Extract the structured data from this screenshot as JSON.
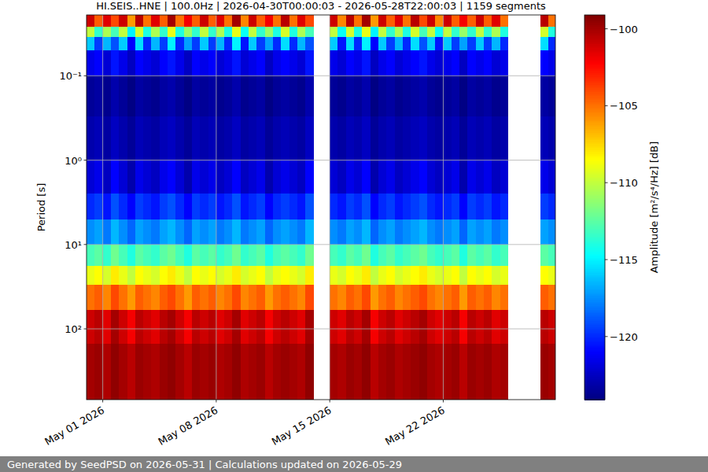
{
  "chart_data": {
    "type": "heatmap",
    "title": "HI.SEIS..HNE | 100.0Hz | 2026-04-30T00:00:03 - 2026-05-28T22:00:03 | 1159 segments",
    "y_label": "Period [s]",
    "footer": "Generated by SeedPSD on 2026-05-31 | Calculations updated on 2026-05-29",
    "log": "y",
    "grid": true,
    "color": "jet",
    "xlim": [
      "2026-04-30T00:00:03",
      "2026-05-28T22:00:03"
    ],
    "xticks": [
      {
        "value": "2026-05-01",
        "label": "May 01 2026"
      },
      {
        "value": "2026-05-08",
        "label": "May 08 2026"
      },
      {
        "value": "2026-05-15",
        "label": "May 15 2026"
      },
      {
        "value": "2026-05-22",
        "label": "May 22 2026"
      }
    ],
    "ylim": [
      0.019,
      690
    ],
    "yticks": [
      {
        "value": 0.1,
        "label": "10⁻¹"
      },
      {
        "value": 1,
        "label": "10⁰"
      },
      {
        "value": 10,
        "label": "10¹"
      },
      {
        "value": 100,
        "label": "10²"
      }
    ],
    "colorbar": {
      "range": [
        -124.1,
        -99.1
      ],
      "label": "Amplitude [m²/s⁴/Hz] [dB]",
      "ticks": [
        {
          "value": -100,
          "label": "−100"
        },
        {
          "value": -105,
          "label": "−105"
        },
        {
          "value": -110,
          "label": "−110"
        },
        {
          "value": -115,
          "label": "−115"
        },
        {
          "value": -120,
          "label": "−120"
        }
      ]
    },
    "x_edges": [
      "2026-04-30T00:00",
      "2026-04-30T12:00",
      "2026-05-01T00:00",
      "2026-05-01T12:00",
      "2026-05-02T00:00",
      "2026-05-02T12:00",
      "2026-05-03T00:00",
      "2026-05-03T12:00",
      "2026-05-04T00:00",
      "2026-05-04T12:00",
      "2026-05-05T00:00",
      "2026-05-05T12:00",
      "2026-05-06T00:00",
      "2026-05-06T12:00",
      "2026-05-07T00:00",
      "2026-05-07T12:00",
      "2026-05-08T00:00",
      "2026-05-08T12:00",
      "2026-05-09T00:00",
      "2026-05-09T12:00",
      "2026-05-10T00:00",
      "2026-05-10T12:00",
      "2026-05-11T00:00",
      "2026-05-11T12:00",
      "2026-05-12T00:00",
      "2026-05-12T12:00",
      "2026-05-13T00:00",
      "2026-05-13T12:00",
      "2026-05-14T00:00",
      "2026-05-14T12:00",
      "2026-05-15T00:00",
      "2026-05-15T12:00",
      "2026-05-16T00:00",
      "2026-05-16T12:00",
      "2026-05-17T00:00",
      "2026-05-17T12:00",
      "2026-05-18T00:00",
      "2026-05-18T12:00",
      "2026-05-19T00:00",
      "2026-05-19T12:00",
      "2026-05-20T00:00",
      "2026-05-20T12:00",
      "2026-05-21T00:00",
      "2026-05-21T12:00",
      "2026-05-22T00:00",
      "2026-05-22T12:00",
      "2026-05-23T00:00",
      "2026-05-23T12:00",
      "2026-05-24T00:00",
      "2026-05-24T12:00",
      "2026-05-25T00:00",
      "2026-05-25T12:00",
      "2026-05-26T00:00",
      "2026-05-26T12:00",
      "2026-05-27T00:00",
      "2026-05-27T12:00",
      "2026-05-28T00:00",
      "2026-05-28T12:00",
      "2026-05-29T00:00"
    ],
    "y_edges": [
      0.019,
      0.026,
      0.035,
      0.05,
      0.1,
      0.3,
      1,
      2.5,
      5,
      10,
      18,
      30,
      60,
      150,
      690
    ],
    "values": [
      [
        -101,
        -104.5,
        -101.5,
        -104,
        -101,
        -106,
        -100.5,
        -105,
        -101.5,
        -104.5,
        -100,
        -105,
        -102,
        -104.5,
        -101,
        -104.5,
        -101.5,
        -105,
        -100,
        -105.5,
        -101,
        -104.5,
        -102,
        -105,
        -100.5,
        -105,
        -101.5,
        -104,
        null,
        null,
        -101,
        -105.5,
        -100.5,
        -105,
        -100,
        -106,
        -101,
        -104.5,
        -101.5,
        -105,
        -100.5,
        -104,
        -101,
        -105.5,
        -101,
        -104.5,
        -102,
        -104.5,
        -101,
        -104.5,
        -101.5,
        -105,
        null,
        null,
        null,
        null,
        -100.5,
        -105
      ],
      [
        -110,
        -113.5,
        -110.5,
        -113,
        -110,
        -115,
        -109.5,
        -114,
        -110.5,
        -113.5,
        -109,
        -114,
        -111,
        -113.5,
        -110,
        -113.5,
        -110.5,
        -114,
        -109,
        -114.5,
        -110,
        -113.5,
        -111,
        -114,
        -109.5,
        -114,
        -110.5,
        -113,
        null,
        null,
        -110,
        -114.5,
        -109.5,
        -114,
        -109,
        -115,
        -110,
        -113.5,
        -110.5,
        -114,
        -109.5,
        -113,
        -110,
        -114.5,
        -110,
        -113.5,
        -111,
        -113.5,
        -110,
        -113.5,
        -110.5,
        -114,
        null,
        null,
        null,
        null,
        -109.5,
        -114
      ],
      [
        -116,
        -119.5,
        -116.5,
        -119,
        -116,
        -121,
        -115.5,
        -120,
        -116.5,
        -119.5,
        -115,
        -120,
        -117,
        -119.5,
        -116,
        -119.5,
        -116.5,
        -120,
        -115,
        -120.5,
        -116,
        -119.5,
        -117,
        -120,
        -115.5,
        -120,
        -116.5,
        -119,
        null,
        null,
        -116,
        -120.5,
        -115.5,
        -120,
        -115,
        -121,
        -116,
        -119.5,
        -116.5,
        -120,
        -115.5,
        -119,
        -116,
        -120.5,
        -116,
        -119.5,
        -117,
        -119.5,
        -116,
        -119.5,
        -116.5,
        -120,
        null,
        null,
        null,
        null,
        -115.5,
        -120
      ],
      [
        -121.5,
        -121,
        -122,
        -120.5,
        -121.5,
        -122.5,
        -121,
        -121.5,
        -122,
        -121,
        -120.5,
        -121.5,
        -122.5,
        -121,
        -121.5,
        -121,
        -122,
        -121.5,
        -120.5,
        -122,
        -121.5,
        -121,
        -122.5,
        -121.5,
        -121,
        -121.5,
        -122,
        -120.5,
        null,
        null,
        -121.5,
        -122,
        -121,
        -121.5,
        -120.5,
        -122.5,
        -121.5,
        -121,
        -122,
        -121.5,
        -121,
        -120.5,
        -121.5,
        -122,
        -121.5,
        -121,
        -122.5,
        -121,
        -121.5,
        -121,
        -122,
        -121.5,
        null,
        null,
        null,
        null,
        -121,
        -121.5
      ],
      [
        -123.5,
        -123.25,
        -123.75,
        -123,
        -123.5,
        -124,
        -123.25,
        -123.5,
        -123.75,
        -123.25,
        -123,
        -123.5,
        -124,
        -123.25,
        -123.5,
        -123.25,
        -123.75,
        -123.5,
        -123,
        -123.75,
        -123.5,
        -123.25,
        -124,
        -123.5,
        -123.25,
        -123.5,
        -123.75,
        -123,
        null,
        null,
        -123.5,
        -123.75,
        -123.25,
        -123.5,
        -123,
        -124,
        -123.5,
        -123.25,
        -123.75,
        -123.5,
        -123.25,
        -123,
        -123.5,
        -123.75,
        -123.5,
        -123.25,
        -124,
        -123.25,
        -123.5,
        -123.25,
        -123.75,
        -123.5,
        null,
        null,
        null,
        null,
        -123.25,
        -123.5
      ],
      [
        -123,
        -122.75,
        -123.25,
        -122.5,
        -123,
        -123.5,
        -122.75,
        -123,
        -123.25,
        -122.75,
        -122.5,
        -123,
        -123.5,
        -122.75,
        -123,
        -122.75,
        -123.25,
        -123,
        -122.5,
        -123.25,
        -123,
        -122.75,
        -123.5,
        -123,
        -122.75,
        -123,
        -123.25,
        -122.5,
        null,
        null,
        -123,
        -123.25,
        -122.75,
        -123,
        -122.5,
        -123.5,
        -123,
        -122.75,
        -123.25,
        -123,
        -122.75,
        -122.5,
        -123,
        -123.25,
        -123,
        -122.75,
        -123.5,
        -122.75,
        -123,
        -122.75,
        -123.25,
        -123,
        null,
        null,
        null,
        null,
        -122.75,
        -123
      ],
      [
        -122,
        -121.5,
        -122.5,
        -121,
        -122,
        -123,
        -121.5,
        -122,
        -122.5,
        -121.5,
        -121,
        -122,
        -123,
        -121.5,
        -122,
        -121.5,
        -122.5,
        -122,
        -121,
        -122.5,
        -122,
        -121.5,
        -123,
        -122,
        -121.5,
        -122,
        -122.5,
        -121,
        null,
        null,
        -122,
        -122.5,
        -121.5,
        -122,
        -121,
        -123,
        -122,
        -121.5,
        -122.5,
        -122,
        -121.5,
        -121,
        -122,
        -122.5,
        -122,
        -121.5,
        -123,
        -121.5,
        -122,
        -121.5,
        -122.5,
        -122,
        null,
        null,
        null,
        null,
        -121.5,
        -122
      ],
      [
        -120,
        -119.5,
        -120.5,
        -119,
        -120,
        -121,
        -119.5,
        -120,
        -120.5,
        -119.5,
        -119,
        -120,
        -121,
        -119.5,
        -120,
        -119.5,
        -120.5,
        -120,
        -119,
        -120.5,
        -120,
        -119.5,
        -121,
        -120,
        -119.5,
        -120,
        -120.5,
        -119,
        null,
        null,
        -120,
        -120.5,
        -119.5,
        -120,
        -119,
        -121,
        -120,
        -119.5,
        -120.5,
        -120,
        -119.5,
        -119,
        -120,
        -120.5,
        -120,
        -119.5,
        -121,
        -119.5,
        -120,
        -119.5,
        -120.5,
        -120,
        null,
        null,
        null,
        null,
        -119.5,
        -120
      ],
      [
        -117.5,
        -117,
        -118,
        -116.5,
        -117.5,
        -118.5,
        -117,
        -117.5,
        -118,
        -117,
        -116.5,
        -117.5,
        -118.5,
        -117,
        -117.5,
        -117,
        -118,
        -117.5,
        -116.5,
        -118,
        -117.5,
        -117,
        -118.5,
        -117.5,
        -117,
        -117.5,
        -118,
        -116.5,
        null,
        null,
        -117.5,
        -118,
        -117,
        -117.5,
        -116.5,
        -118.5,
        -117.5,
        -117,
        -118,
        -117.5,
        -117,
        -116.5,
        -117.5,
        -118,
        -117.5,
        -117,
        -118.5,
        -117,
        -117.5,
        -117,
        -118,
        -117.5,
        null,
        null,
        null,
        null,
        -117,
        -117.5
      ],
      [
        -113,
        -112.5,
        -113.5,
        -112,
        -113,
        -114,
        -112.5,
        -113,
        -113.5,
        -112.5,
        -112,
        -113,
        -114,
        -112.5,
        -113,
        -112.5,
        -113.5,
        -113,
        -112,
        -113.5,
        -113,
        -112.5,
        -114,
        -113,
        -112.5,
        -113,
        -113.5,
        -112,
        null,
        null,
        -113,
        -113.5,
        -112.5,
        -113,
        -112,
        -114,
        -113,
        -112.5,
        -113.5,
        -113,
        -112.5,
        -112,
        -113,
        -113.5,
        -113,
        -112.5,
        -114,
        -112.5,
        -113,
        -112.5,
        -113.5,
        -113,
        null,
        null,
        null,
        null,
        -112.5,
        -113
      ],
      [
        -109,
        -108.5,
        -109.5,
        -108,
        -109,
        -110,
        -108.5,
        -109,
        -109.5,
        -108.5,
        -108,
        -109,
        -110,
        -108.5,
        -109,
        -108.5,
        -109.5,
        -109,
        -108,
        -109.5,
        -109,
        -108.5,
        -110,
        -109,
        -108.5,
        -109,
        -109.5,
        -108,
        null,
        null,
        -109,
        -109.5,
        -108.5,
        -109,
        -108,
        -110,
        -109,
        -108.5,
        -109.5,
        -109,
        -108.5,
        -108,
        -109,
        -109.5,
        -109,
        -108.5,
        -110,
        -108.5,
        -109,
        -108.5,
        -109.5,
        -109,
        null,
        null,
        null,
        null,
        -108.5,
        -109
      ],
      [
        -105,
        -104.5,
        -105.5,
        -104,
        -105,
        -106,
        -104.5,
        -105,
        -105.5,
        -104.5,
        -104,
        -105,
        -106,
        -104.5,
        -105,
        -104.5,
        -105.5,
        -105,
        -104,
        -105.5,
        -105,
        -104.5,
        -106,
        -105,
        -104.5,
        -105,
        -105.5,
        -104,
        null,
        null,
        -105,
        -105.5,
        -104.5,
        -105,
        -104,
        -106,
        -105,
        -104.5,
        -105.5,
        -105,
        -104.5,
        -104,
        -105,
        -105.5,
        -105,
        -104.5,
        -106,
        -104.5,
        -105,
        -104.5,
        -105.5,
        -105,
        null,
        null,
        null,
        null,
        -104.5,
        -105
      ],
      [
        -101,
        -100.5,
        -101.5,
        -100,
        -101,
        -102,
        -100.5,
        -101,
        -101.5,
        -100.5,
        -100,
        -101,
        -102,
        -100.5,
        -101,
        -100.5,
        -101.5,
        -101,
        -100,
        -101.5,
        -101,
        -100.5,
        -102,
        -101,
        -100.5,
        -101,
        -101.5,
        -100,
        null,
        null,
        -101,
        -101.5,
        -100.5,
        -101,
        -100,
        -102,
        -101,
        -100.5,
        -101.5,
        -101,
        -100.5,
        -100,
        -101,
        -101.5,
        -101,
        -100.5,
        -102,
        -100.5,
        -101,
        -100.5,
        -101.5,
        -101,
        null,
        null,
        null,
        null,
        -100.5,
        -101
      ],
      [
        -100,
        -99.75,
        -100.25,
        -99.5,
        -100,
        -100.5,
        -99.75,
        -100,
        -100.25,
        -99.75,
        -99.5,
        -100,
        -100.5,
        -99.75,
        -100,
        -99.75,
        -100.25,
        -100,
        -99.5,
        -100.25,
        -100,
        -99.75,
        -100.5,
        -100,
        -99.75,
        -100,
        -100.25,
        -99.5,
        null,
        null,
        -100,
        -100.25,
        -99.75,
        -100,
        -99.5,
        -100.5,
        -100,
        -99.75,
        -100.25,
        -100,
        -99.75,
        -99.5,
        -100,
        -100.25,
        -100,
        -99.75,
        -100.5,
        -99.75,
        -100,
        -99.75,
        -100.25,
        -100,
        null,
        null,
        null,
        null,
        -99.75,
        -100
      ]
    ]
  }
}
